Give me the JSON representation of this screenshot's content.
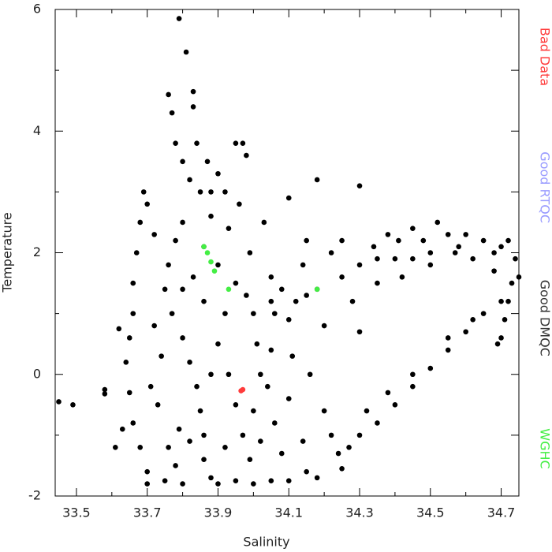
{
  "chart_data": {
    "type": "scatter",
    "xlabel": "Salinity",
    "ylabel": "Temperature",
    "xlim": [
      33.44,
      34.75
    ],
    "ylim": [
      -2,
      6
    ],
    "xticks": [
      33.5,
      33.7,
      33.9,
      34.1,
      34.3,
      34.5,
      34.7
    ],
    "xminorticks": [
      33.6,
      33.8,
      34.0,
      34.2,
      34.4,
      34.6
    ],
    "yticks": [
      -2,
      0,
      2,
      4,
      6
    ],
    "yminorticks": [
      -1,
      1,
      3,
      5
    ],
    "legend": "right",
    "series": [
      {
        "name": "Bad Data",
        "color": "#ff3b3b",
        "x": [
          33.97,
          33.965
        ],
        "y": [
          -0.25,
          -0.27
        ]
      },
      {
        "name": "Good RTQC",
        "color": "#9a9cff",
        "x": [],
        "y": []
      },
      {
        "name": "Good DMQC",
        "color": "#000000",
        "x": [
          33.45,
          33.49,
          33.58,
          33.58,
          33.61,
          33.62,
          33.63,
          33.64,
          33.65,
          33.66,
          33.66,
          33.67,
          33.68,
          33.69,
          33.7,
          33.65,
          33.66,
          33.68,
          33.7,
          33.7,
          33.79,
          33.81,
          33.76,
          33.77,
          33.83,
          33.83,
          33.78,
          33.8,
          33.82,
          33.85,
          33.87,
          33.9,
          33.95,
          33.97,
          33.98,
          33.92,
          33.88,
          33.8,
          33.78,
          33.76,
          33.75,
          33.77,
          33.8,
          33.82,
          33.84,
          33.85,
          33.86,
          33.86,
          33.88,
          33.8,
          33.75,
          33.9,
          33.95,
          34.0,
          34.05,
          34.1,
          34.15,
          34.18,
          33.72,
          33.74,
          33.73,
          33.76,
          33.79,
          33.83,
          33.86,
          33.9,
          33.93,
          33.95,
          33.92,
          33.9,
          33.93,
          33.95,
          33.97,
          33.99,
          34.0,
          34.02,
          34.01,
          34.0,
          33.98,
          33.99,
          34.03,
          34.05,
          34.06,
          34.05,
          34.04,
          34.06,
          34.08,
          34.1,
          34.11,
          34.12,
          34.1,
          34.18,
          34.15,
          34.14,
          34.18,
          34.2,
          34.16,
          34.2,
          34.22,
          34.24,
          34.25,
          34.3,
          34.22,
          34.25,
          34.28,
          34.3,
          34.3,
          34.34,
          34.35,
          34.38,
          34.4,
          34.42,
          34.45,
          34.48,
          34.5,
          34.52,
          34.55,
          34.58,
          34.6,
          34.62,
          34.65,
          34.68,
          34.7,
          34.72,
          34.74,
          34.75,
          34.73,
          34.72,
          34.71,
          34.7,
          34.69,
          34.7,
          34.65,
          34.6,
          34.55,
          34.5,
          34.45,
          34.4,
          34.35,
          34.3,
          34.27,
          34.32,
          34.38,
          34.45,
          34.55,
          34.62,
          34.45,
          34.5,
          34.35,
          34.25,
          34.15,
          34.08,
          33.96,
          33.88,
          33.84,
          33.86,
          33.8,
          33.72,
          33.71,
          33.78,
          33.92,
          34.02,
          34.14,
          34.1,
          34.05,
          33.88,
          33.82,
          34.57,
          34.68,
          34.41
        ],
        "y": [
          -0.45,
          -0.5,
          -0.25,
          -0.32,
          -1.2,
          0.75,
          -0.9,
          0.2,
          0.6,
          1.0,
          1.5,
          2.0,
          2.5,
          3.0,
          2.8,
          -0.3,
          -0.8,
          -1.2,
          -1.6,
          -1.8,
          5.85,
          5.3,
          4.6,
          4.3,
          4.65,
          4.4,
          3.8,
          3.5,
          3.2,
          3.0,
          3.5,
          3.3,
          3.8,
          3.8,
          3.6,
          3.0,
          2.6,
          2.5,
          2.2,
          1.8,
          1.4,
          1.0,
          0.6,
          0.2,
          -0.2,
          -0.6,
          -1.0,
          -1.4,
          -1.7,
          -1.8,
          -1.75,
          -1.8,
          -1.75,
          -1.8,
          -1.75,
          -1.75,
          -1.6,
          -1.7,
          2.3,
          0.3,
          -0.5,
          -1.2,
          -0.9,
          1.6,
          2.1,
          1.8,
          2.4,
          1.5,
          1.0,
          0.5,
          0.0,
          -0.5,
          -1.0,
          -1.4,
          -0.6,
          0.0,
          0.5,
          1.0,
          1.3,
          2.0,
          2.5,
          1.6,
          1.0,
          0.4,
          -0.2,
          -0.8,
          -1.3,
          -0.4,
          0.3,
          1.2,
          2.9,
          3.2,
          2.2,
          1.8,
          1.4,
          0.8,
          0.0,
          -0.6,
          -1.0,
          -1.3,
          -1.55,
          3.1,
          2.0,
          1.6,
          1.2,
          0.7,
          1.8,
          2.1,
          1.5,
          2.3,
          1.9,
          1.6,
          2.4,
          2.2,
          1.8,
          2.5,
          2.3,
          2.1,
          2.3,
          1.9,
          2.2,
          2.0,
          2.1,
          2.2,
          1.9,
          1.6,
          1.5,
          1.2,
          0.9,
          0.6,
          0.5,
          1.2,
          1.0,
          0.7,
          0.4,
          0.1,
          -0.2,
          -0.5,
          -0.8,
          -1.0,
          -1.2,
          -0.6,
          -0.3,
          0.0,
          0.6,
          0.9,
          1.9,
          2.0,
          1.9,
          2.2,
          1.3,
          1.4,
          2.8,
          3.0,
          3.8,
          1.2,
          1.4,
          0.8,
          -0.2,
          -1.5,
          -1.2,
          -1.1,
          -1.1,
          0.9,
          1.2,
          0.0,
          -1.1,
          2.0,
          1.7,
          2.2
        ]
      },
      {
        "name": "WGHC",
        "color": "#44ee44",
        "x": [
          33.86,
          33.87,
          33.88,
          33.89,
          33.93,
          34.18
        ],
        "y": [
          2.1,
          2.0,
          1.85,
          1.7,
          1.4,
          1.4
        ]
      }
    ]
  }
}
